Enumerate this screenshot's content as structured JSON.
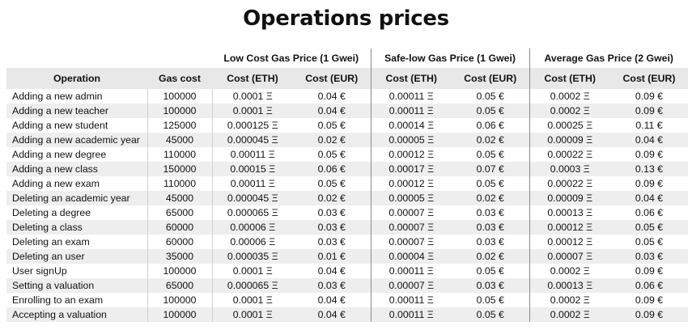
{
  "title": "Operations prices",
  "groups": [
    "Low Cost Gas Price (1 Gwei)",
    "Safe-low Gas Price (1 Gwei)",
    "Average Gas Price (2 Gwei)"
  ],
  "columns": [
    "Operation",
    "Gas cost",
    "Cost (ETH)",
    "Cost (EUR)",
    "Cost (ETH)",
    "Cost (EUR)",
    "Cost (ETH)",
    "Cost (EUR)"
  ],
  "rows": [
    [
      "Adding a new admin",
      "100000",
      "0.0001 Ξ",
      "0.04 €",
      "0.00011 Ξ",
      "0.05 €",
      "0.0002 Ξ",
      "0.09 €"
    ],
    [
      "Adding a new teacher",
      "100000",
      "0.0001 Ξ",
      "0.04 €",
      "0.00011 Ξ",
      "0.05 €",
      "0.0002 Ξ",
      "0.09 €"
    ],
    [
      "Adding a new student",
      "125000",
      "0.000125 Ξ",
      "0.05 €",
      "0.00014 Ξ",
      "0.06 €",
      "0.00025 Ξ",
      "0.11 €"
    ],
    [
      "Adding a new academic year",
      "45000",
      "0.000045 Ξ",
      "0.02 €",
      "0.00005 Ξ",
      "0.02 €",
      "0.00009 Ξ",
      "0.04 €"
    ],
    [
      "Adding a new degree",
      "110000",
      "0.00011 Ξ",
      "0.05 €",
      "0.00012 Ξ",
      "0.05 €",
      "0.00022 Ξ",
      "0.09 €"
    ],
    [
      "Adding a new class",
      "150000",
      "0.00015 Ξ",
      "0.06 €",
      "0.00017 Ξ",
      "0.07 €",
      "0.0003 Ξ",
      "0.13 €"
    ],
    [
      "Adding a new exam",
      "110000",
      "0.00011 Ξ",
      "0.05 €",
      "0.00012 Ξ",
      "0.05 €",
      "0.00022 Ξ",
      "0.09 €"
    ],
    [
      "Deleting an academic year",
      "45000",
      "0.000045 Ξ",
      "0.02 €",
      "0.00005 Ξ",
      "0.02 €",
      "0.00009 Ξ",
      "0.04 €"
    ],
    [
      "Deleting a degree",
      "65000",
      "0.000065 Ξ",
      "0.03 €",
      "0.00007 Ξ",
      "0.03 €",
      "0.00013 Ξ",
      "0.06 €"
    ],
    [
      "Deleting a class",
      "60000",
      "0.00006 Ξ",
      "0.03 €",
      "0.00007 Ξ",
      "0.03 €",
      "0.00012 Ξ",
      "0.05 €"
    ],
    [
      "Deleting an exam",
      "60000",
      "0.00006 Ξ",
      "0.03 €",
      "0.00007 Ξ",
      "0.03 €",
      "0.00012 Ξ",
      "0.05 €"
    ],
    [
      "Deleting an user",
      "35000",
      "0.000035 Ξ",
      "0.01 €",
      "0.00004 Ξ",
      "0.02 €",
      "0.00007 Ξ",
      "0.03 €"
    ],
    [
      "User signUp",
      "100000",
      "0.0001 Ξ",
      "0.04 €",
      "0.00011 Ξ",
      "0.05 €",
      "0.0002 Ξ",
      "0.09 €"
    ],
    [
      "Setting a valuation",
      "65000",
      "0.000065 Ξ",
      "0.03 €",
      "0.00007 Ξ",
      "0.03 €",
      "0.00013 Ξ",
      "0.06 €"
    ],
    [
      "Enrolling to an exam",
      "100000",
      "0.0001 Ξ",
      "0.04 €",
      "0.00011 Ξ",
      "0.05 €",
      "0.0002 Ξ",
      "0.09 €"
    ],
    [
      "Accepting a valuation",
      "100000",
      "0.0001 Ξ",
      "0.04 €",
      "0.00011 Ξ",
      "0.05 €",
      "0.0002 Ξ",
      "0.09 €"
    ]
  ]
}
